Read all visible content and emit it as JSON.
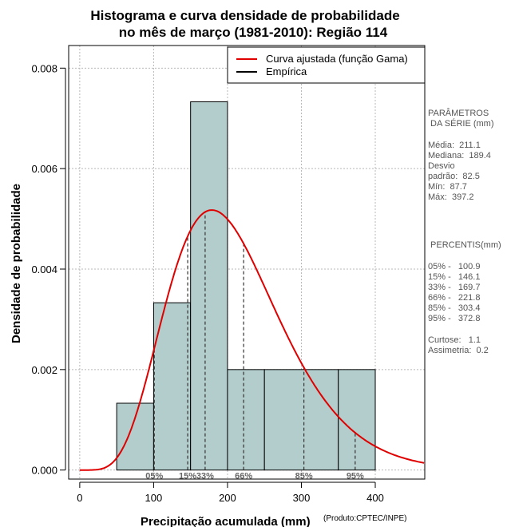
{
  "chart_data": {
    "type": "histogram",
    "title_line1": "Histograma e curva densidade de probabilidade",
    "title_line2": "no mês de março (1981-2010): Região 114",
    "xlabel": "Precipitação acumulada (mm)",
    "ylabel": "Densidade de probabilidade",
    "credit": "(Produto:CPTEC/INPE)",
    "xlim": [
      -15,
      467
    ],
    "ylim": [
      -0.00018,
      0.00845
    ],
    "x_ticks": [
      0,
      100,
      200,
      300,
      400
    ],
    "x_tick_labels": [
      "0",
      "100",
      "200",
      "300",
      "400"
    ],
    "y_ticks": [
      0.0,
      0.002,
      0.004,
      0.006,
      0.008
    ],
    "y_tick_labels": [
      "0.000",
      "0.002",
      "0.004",
      "0.006",
      "0.008"
    ],
    "grid": true,
    "bars": [
      {
        "x0": 50,
        "x1": 100,
        "density": 0.00133
      },
      {
        "x0": 100,
        "x1": 150,
        "density": 0.00333
      },
      {
        "x0": 150,
        "x1": 200,
        "density": 0.00733
      },
      {
        "x0": 200,
        "x1": 250,
        "density": 0.002
      },
      {
        "x0": 250,
        "x1": 350,
        "density": 0.002
      },
      {
        "x0": 350,
        "x1": 400,
        "density": 0.002
      }
    ],
    "bar_color": "#b3cccc",
    "curve_color": "#e00000",
    "gamma_fit": {
      "mean": 211.1,
      "sd": 82.5
    },
    "percentile_lines": [
      {
        "label": "05%",
        "value": 100.9
      },
      {
        "label": "15%",
        "value": 146.1
      },
      {
        "label": "33%",
        "value": 169.7
      },
      {
        "label": "66%",
        "value": 221.8
      },
      {
        "label": "85%",
        "value": 303.4
      },
      {
        "label": "95%",
        "value": 372.8
      }
    ],
    "legend": [
      {
        "label": "Curva ajustada (função Gama)",
        "color": "#e00000"
      },
      {
        "label": "Empírica",
        "color": "#000000"
      }
    ]
  },
  "side_panel": {
    "params_title_1": "PARÂMETROS",
    "params_title_2": " DA SÉRIE (mm)",
    "media": "Média:  211.1",
    "mediana": "Mediana:  189.4",
    "desvio_1": "Desvio",
    "desvio_2": "padrão:  82.5",
    "min": "Mín:  87.7",
    "max": "Máx:  397.2",
    "percentis_title": " PERCENTIS(mm)",
    "p05": "05% -   100.9",
    "p15": "15% -   146.1",
    "p33": "33% -   169.7",
    "p66": "66% -   221.8",
    "p85": "85% -   303.4",
    "p95": "95% -   372.8",
    "curtose": "Curtose:   1.1",
    "assimetria": "Assimetria:  0.2"
  }
}
